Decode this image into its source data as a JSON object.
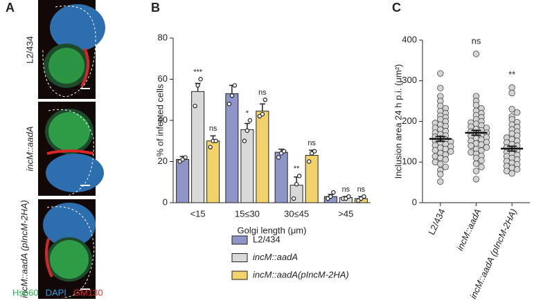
{
  "panel_labels": [
    "A",
    "B",
    "C"
  ],
  "microscopy": {
    "rows": [
      "L2/434",
      "incM::aadA",
      "incM::aadA (pIncM-2HA)"
    ],
    "stains": [
      {
        "name": "Hsp60",
        "color": "#22b14c"
      },
      {
        "name": "DAPI",
        "color": "#2f9be0"
      },
      {
        "name": "GM130",
        "color": "#e8282a"
      }
    ]
  },
  "chart_data": [
    {
      "type": "bar",
      "x_label": "Golgi length (μm)",
      "y_label": "% of infected cells",
      "categories": [
        "<15",
        "15≤30",
        "30≤45",
        ">45"
      ],
      "ylim": [
        0,
        80
      ],
      "yticks": [
        0,
        20,
        40,
        60,
        80
      ],
      "series": [
        {
          "name": "L2/434",
          "color": "#8d96c6",
          "values": [
            21,
            53,
            24.5,
            3
          ],
          "errors": [
            1.5,
            4,
            1.5,
            1
          ],
          "points": [
            [
              20,
              21,
              22
            ],
            [
              48,
              52,
              57
            ],
            [
              22,
              24,
              25
            ],
            [
              2,
              3,
              5
            ]
          ]
        },
        {
          "name": "incM::aadA",
          "color": "#d9d9d9",
          "values": [
            54,
            35.5,
            8.5,
            2.5
          ],
          "errors": [
            4,
            3,
            4,
            0.5
          ],
          "points": [
            [
              47,
              57,
              60
            ],
            [
              30,
              35,
              40
            ],
            [
              2,
              9,
              13
            ],
            [
              2,
              2,
              3
            ]
          ],
          "annotations": [
            "***",
            "*",
            "**",
            "ns"
          ]
        },
        {
          "name": "incM::aadA(pIncM-2HA)",
          "color": "#f2d36b",
          "values": [
            30,
            44.5,
            23,
            2
          ],
          "errors": [
            2.5,
            3.5,
            2.5,
            1
          ],
          "points": [
            [
              27,
              30,
              30
            ],
            [
              42,
              43,
              50
            ],
            [
              20,
              24,
              25
            ],
            [
              1,
              2,
              3
            ]
          ],
          "annotations": [
            "ns",
            "ns",
            "ns",
            "ns"
          ]
        }
      ]
    },
    {
      "type": "strip",
      "y_label": "Inclusion area 24 h p.i. (μm²)",
      "categories": [
        "L2/434",
        "incM::aadA",
        "incM::aadA (pIncM-2HA)"
      ],
      "ylim": [
        0,
        400
      ],
      "yticks": [
        0,
        100,
        200,
        300,
        400
      ],
      "means": [
        157,
        172,
        133
      ],
      "errors": [
        6,
        6,
        6
      ],
      "annotations": [
        {
          "category": 1,
          "text": "ns"
        },
        {
          "category": 2,
          "text": "**"
        }
      ],
      "groups": [
        [
          318,
          282,
          262,
          250,
          238,
          232,
          225,
          220,
          214,
          210,
          205,
          200,
          196,
          192,
          188,
          184,
          180,
          176,
          172,
          168,
          165,
          162,
          158,
          155,
          152,
          150,
          147,
          144,
          141,
          138,
          135,
          132,
          129,
          126,
          122,
          118,
          114,
          110,
          106,
          100,
          95,
          88,
          80,
          70,
          52
        ],
        [
          366,
          262,
          250,
          240,
          232,
          226,
          220,
          215,
          210,
          205,
          200,
          197,
          194,
          190,
          187,
          184,
          181,
          178,
          175,
          172,
          170,
          167,
          164,
          161,
          158,
          155,
          152,
          149,
          146,
          143,
          140,
          136,
          132,
          128,
          124,
          120,
          115,
          110,
          104,
          96,
          88,
          78,
          58
        ],
        [
          283,
          270,
          230,
          222,
          212,
          205,
          198,
          192,
          186,
          180,
          175,
          170,
          165,
          160,
          156,
          152,
          148,
          144,
          140,
          136,
          132,
          128,
          124,
          120,
          117,
          114,
          110,
          106,
          102,
          98,
          94,
          90,
          86,
          82,
          78,
          72
        ]
      ]
    }
  ]
}
